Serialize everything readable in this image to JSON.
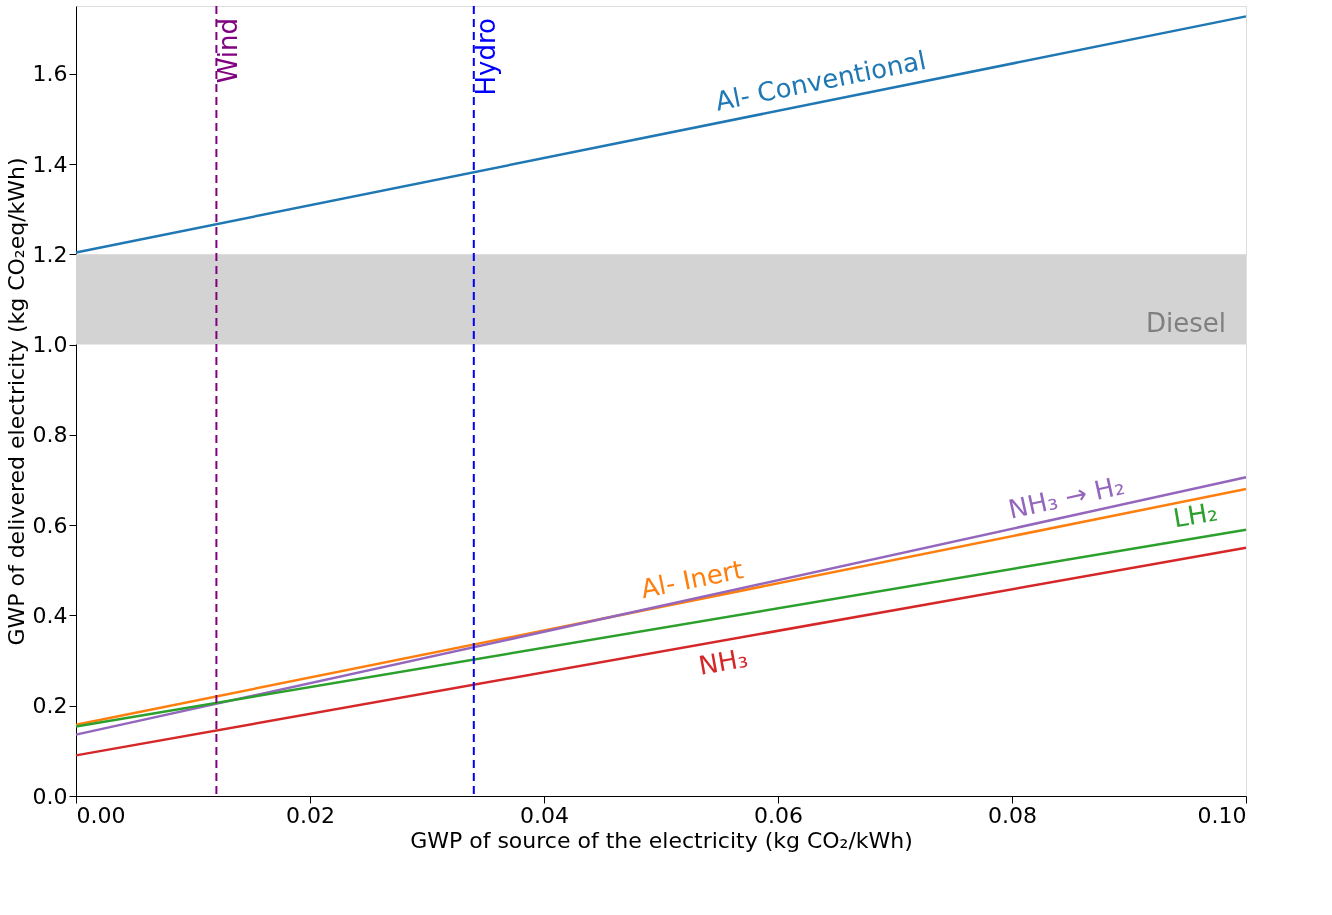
{
  "chart_data": {
    "type": "line",
    "xlabel": "GWP of source of the electricity (kg CO₂/kWh)",
    "ylabel": "GWP of delivered electricity (kg CO₂eq/kWh)",
    "x": [
      0,
      0.1
    ],
    "series": [
      {
        "name": "Al- Conventional",
        "color": "#1f77b4",
        "values": [
          1.204,
          1.727
        ]
      },
      {
        "name": "Al- Inert",
        "color": "#ff7f0e",
        "values": [
          0.158,
          0.68
        ]
      },
      {
        "name": "NH₃ → H₂",
        "color": "#9467bd",
        "values": [
          0.136,
          0.706
        ]
      },
      {
        "name": "LH₂",
        "color": "#2ca02c",
        "values": [
          0.154,
          0.59
        ]
      },
      {
        "name": "NH₃",
        "color": "#d62728",
        "values": [
          0.09,
          0.55
        ]
      }
    ],
    "xlim": [
      0,
      0.1
    ],
    "xticks": [
      {
        "value": 0,
        "label": "0.00"
      },
      {
        "value": 0.02,
        "label": "0.02"
      },
      {
        "value": 0.04,
        "label": "0.04"
      },
      {
        "value": 0.06,
        "label": "0.06"
      },
      {
        "value": 0.08,
        "label": "0.08"
      },
      {
        "value": 0.1,
        "label": "0.10"
      }
    ],
    "ylim": [
      0,
      1.75
    ],
    "yticks": [
      {
        "value": 0,
        "label": "0.0"
      },
      {
        "value": 0.2,
        "label": "0.2"
      },
      {
        "value": 0.4,
        "label": "0.4"
      },
      {
        "value": 0.6,
        "label": "0.6"
      },
      {
        "value": 0.8,
        "label": "0.8"
      },
      {
        "value": 1.0,
        "label": "1.0"
      },
      {
        "value": 1.2,
        "label": "1.2"
      },
      {
        "value": 1.4,
        "label": "1.4"
      },
      {
        "value": 1.6,
        "label": "1.6"
      }
    ],
    "ref_lines": [
      {
        "axis": "x",
        "value": 0.012,
        "label": "Wind",
        "color": "#800080",
        "line_style": "dashed"
      },
      {
        "axis": "x",
        "value": 0.034,
        "label": "Hydro",
        "color": "#0000ff",
        "line_style": "dashed"
      }
    ],
    "bands": [
      {
        "axis": "y",
        "from": 1.0,
        "to": 1.2,
        "label": "Diesel",
        "color": "#d3d3d3"
      }
    ],
    "grid": false,
    "legend": false,
    "marker": "none",
    "line_style": "solid"
  }
}
